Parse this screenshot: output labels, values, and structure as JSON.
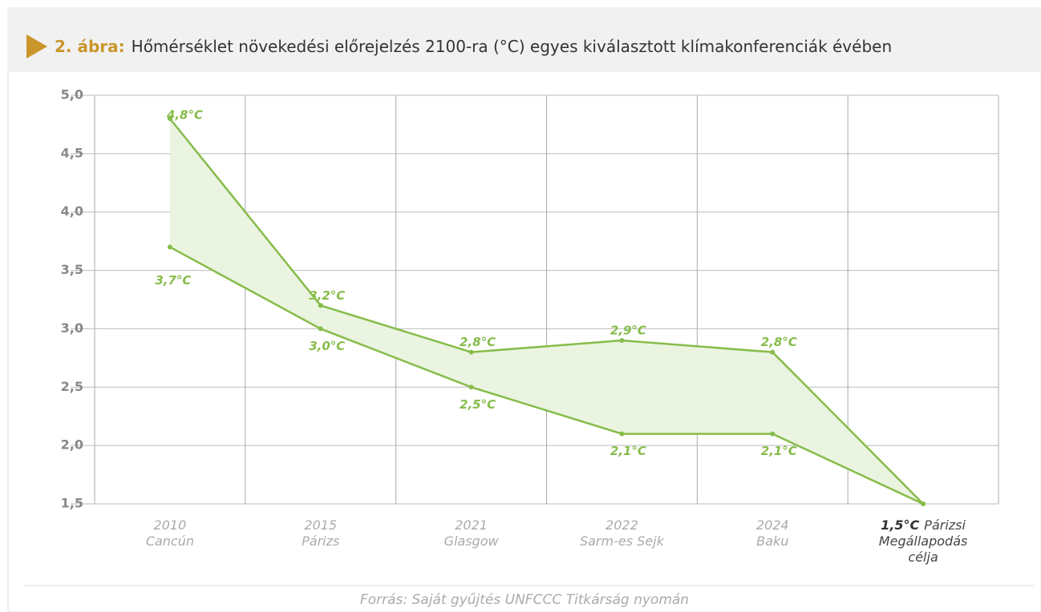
{
  "chart_data": {
    "type": "range_line",
    "title_prefix": "2. ábra:",
    "title": "Hőmérséklet növekedési előrejelzés 2100-ra (°C) egyes kiválasztott klímakonferenciák évében",
    "source": "Forrás: Saját gyűjtés UNFCCC Titkárság nyomán",
    "categories": [
      [
        "2010",
        "Cancún"
      ],
      [
        "2015",
        "Párizs"
      ],
      [
        "2021",
        "Glasgow"
      ],
      [
        "2022",
        "Sarm-es Sejk"
      ],
      [
        "2024",
        "Baku"
      ],
      [
        "Párizsi",
        "Megállapodás",
        "célja"
      ]
    ],
    "target_label": "1,5°C",
    "series": [
      {
        "name": "upper",
        "color": "#86bc4a",
        "values": [
          4.8,
          3.2,
          2.8,
          2.9,
          2.8,
          1.5
        ],
        "value_labels": [
          "4,8°C",
          "3,2°C",
          "2,8°C",
          "2,9°C",
          "2,8°C",
          null
        ]
      },
      {
        "name": "lower",
        "color": "#86bc4a",
        "values": [
          3.7,
          3.0,
          2.5,
          2.1,
          2.1,
          1.5
        ],
        "value_labels": [
          "3,7°C",
          "3,0°C",
          "2,5°C",
          "2,1°C",
          "2,1°C",
          null
        ]
      }
    ],
    "fill": "#eaf4e0",
    "ylim": [
      1.5,
      5.0
    ],
    "yticks": [
      {
        "value": 1.5,
        "label": "1,5"
      },
      {
        "value": 2,
        "label": "2,0"
      },
      {
        "value": 2.5,
        "label": "2,5"
      },
      {
        "value": 3,
        "label": "3,0"
      },
      {
        "value": 3.5,
        "label": "3,5"
      },
      {
        "value": 4,
        "label": "4,0"
      },
      {
        "value": 4.5,
        "label": "4,5"
      },
      {
        "value": 5,
        "label": "5,0"
      }
    ],
    "grid": true
  }
}
